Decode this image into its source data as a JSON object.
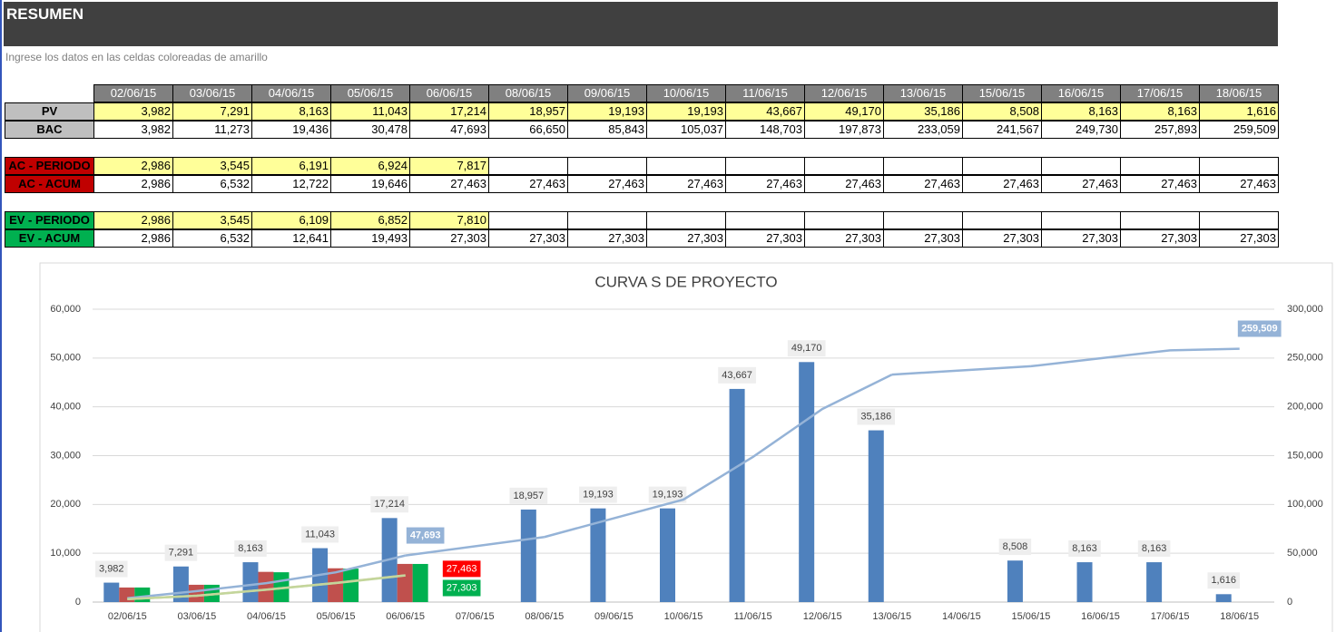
{
  "header": {
    "title": "RESUMEN",
    "subtitle": "Ingrese los datos en las celdas coloreadas de amarillo"
  },
  "table": {
    "dates": [
      "02/06/15",
      "03/06/15",
      "04/06/15",
      "05/06/15",
      "06/06/15",
      "08/06/15",
      "09/06/15",
      "10/06/15",
      "11/06/15",
      "12/06/15",
      "13/06/15",
      "15/06/15",
      "16/06/15",
      "17/06/15",
      "18/06/15"
    ],
    "rows": [
      {
        "label": "PV",
        "label_fill": "#bfbfbf",
        "fill": "#ffff99",
        "values": [
          "3,982",
          "7,291",
          "8,163",
          "11,043",
          "17,214",
          "18,957",
          "19,193",
          "19,193",
          "43,667",
          "49,170",
          "35,186",
          "8,508",
          "8,163",
          "8,163",
          "1,616"
        ]
      },
      {
        "label": "BAC",
        "label_fill": "#bfbfbf",
        "values": [
          "3,982",
          "11,273",
          "19,436",
          "30,478",
          "47,693",
          "66,650",
          "85,843",
          "105,037",
          "148,703",
          "197,873",
          "233,059",
          "241,567",
          "249,730",
          "257,893",
          "259,509"
        ]
      },
      {
        "label": "AC - PERIODO",
        "label_fill": "#c00000",
        "fill": "#ffff99",
        "values": [
          "2,986",
          "3,545",
          "6,191",
          "6,924",
          "7,817"
        ]
      },
      {
        "label": "AC - ACUM",
        "label_fill": "#c00000",
        "values": [
          "2,986",
          "6,532",
          "12,722",
          "19,646",
          "27,463",
          "27,463",
          "27,463",
          "27,463",
          "27,463",
          "27,463",
          "27,463",
          "27,463",
          "27,463",
          "27,463",
          "27,463"
        ]
      },
      {
        "label": "EV - PERIODO",
        "label_fill": "#00b050",
        "fill": "#ffff99",
        "values": [
          "2,986",
          "3,545",
          "6,109",
          "6,852",
          "7,810"
        ]
      },
      {
        "label": "EV - ACUM",
        "label_fill": "#00b050",
        "values": [
          "2,986",
          "6,532",
          "12,641",
          "19,493",
          "27,303",
          "27,303",
          "27,303",
          "27,303",
          "27,303",
          "27,303",
          "27,303",
          "27,303",
          "27,303",
          "27,303",
          "27,303"
        ]
      }
    ]
  },
  "chart_data": {
    "type": "bar",
    "title": "CURVA S DE PROYECTO",
    "categories": [
      "02/06/15",
      "03/06/15",
      "04/06/15",
      "05/06/15",
      "06/06/15",
      "07/06/15",
      "08/06/15",
      "09/06/15",
      "10/06/15",
      "11/06/15",
      "12/06/15",
      "13/06/15",
      "14/06/15",
      "15/06/15",
      "16/06/15",
      "17/06/15",
      "18/06/15"
    ],
    "ylim": [
      0,
      60000
    ],
    "yticks": [
      0,
      {
        "value": 10000,
        "label": "10,000"
      },
      {
        "value": 20000,
        "label": "20,000"
      },
      {
        "value": 30000,
        "label": "30,000"
      },
      {
        "value": 40000,
        "label": "40,000"
      },
      {
        "value": 50000,
        "label": "50,000"
      },
      {
        "value": 60000,
        "label": "60,000"
      }
    ],
    "y2lim": [
      0,
      300000
    ],
    "y2ticks": [
      0,
      {
        "value": 50000,
        "label": "50,000"
      },
      {
        "value": 100000,
        "label": "100,000"
      },
      {
        "value": 150000,
        "label": "150,000"
      },
      {
        "value": 200000,
        "label": "200,000"
      },
      {
        "value": 250000,
        "label": "250,000"
      },
      {
        "value": 300000,
        "label": "300,000"
      }
    ],
    "grid": true,
    "span_gaps": true,
    "series": [
      {
        "name": "PV",
        "type": "bar",
        "color": "#4f81bd",
        "values": [
          3982,
          7291,
          8163,
          11043,
          17214,
          null,
          18957,
          19193,
          19193,
          43667,
          49170,
          35186,
          null,
          8508,
          8163,
          8163,
          1616
        ],
        "value_labels": [
          "3,982",
          "7,291",
          "8,163",
          "11,043",
          "17,214",
          null,
          "18,957",
          "19,193",
          "19,193",
          "43,667",
          "49,170",
          "35,186",
          null,
          "8,508",
          "8,163",
          "8,163",
          "1,616"
        ]
      },
      {
        "name": "AC - PERIODO",
        "type": "bar",
        "color": "#c0504d",
        "values": [
          2986,
          3545,
          6191,
          6924,
          7817,
          null,
          null,
          null,
          null,
          null,
          null,
          null,
          null,
          null,
          null,
          null,
          null
        ]
      },
      {
        "name": "EV - PERIODO",
        "type": "bar",
        "color": "#00b050",
        "values": [
          2986,
          3545,
          6109,
          6852,
          7810,
          null,
          null,
          null,
          null,
          null,
          null,
          null,
          null,
          null,
          null,
          null,
          null
        ]
      },
      {
        "name": "BAC",
        "type": "line",
        "axis": "y2",
        "color": "#95b3d7",
        "values": [
          3982,
          11273,
          19436,
          30478,
          47693,
          null,
          66650,
          85843,
          105037,
          148703,
          197873,
          233059,
          null,
          241567,
          249730,
          257893,
          259509
        ],
        "value_labels": [
          null,
          null,
          null,
          null,
          "47,693",
          null,
          null,
          null,
          null,
          null,
          null,
          null,
          null,
          null,
          null,
          null,
          "259,509"
        ]
      },
      {
        "name": "AC - ACUM",
        "type": "line",
        "axis": "y2",
        "color": "#d8c8a0",
        "values": [
          2986,
          6532,
          12722,
          19646,
          27463,
          null,
          null,
          null,
          null,
          null,
          null,
          null,
          null,
          null,
          null,
          null,
          null
        ],
        "value_labels": [
          null,
          null,
          null,
          null,
          "27,463",
          null,
          null,
          null,
          null,
          null,
          null,
          null,
          null,
          null,
          null,
          null,
          null
        ],
        "label_color": "#ff0000"
      },
      {
        "name": "EV - ACUM",
        "type": "line",
        "axis": "y2",
        "color": "#c3d69b",
        "values": [
          2986,
          6532,
          12641,
          19493,
          27303,
          null,
          null,
          null,
          null,
          null,
          null,
          null,
          null,
          null,
          null,
          null,
          null
        ],
        "value_labels": [
          null,
          null,
          null,
          null,
          "27,303",
          null,
          null,
          null,
          null,
          null,
          null,
          null,
          null,
          null,
          null,
          null,
          null
        ],
        "label_color": "#00b050"
      }
    ]
  }
}
